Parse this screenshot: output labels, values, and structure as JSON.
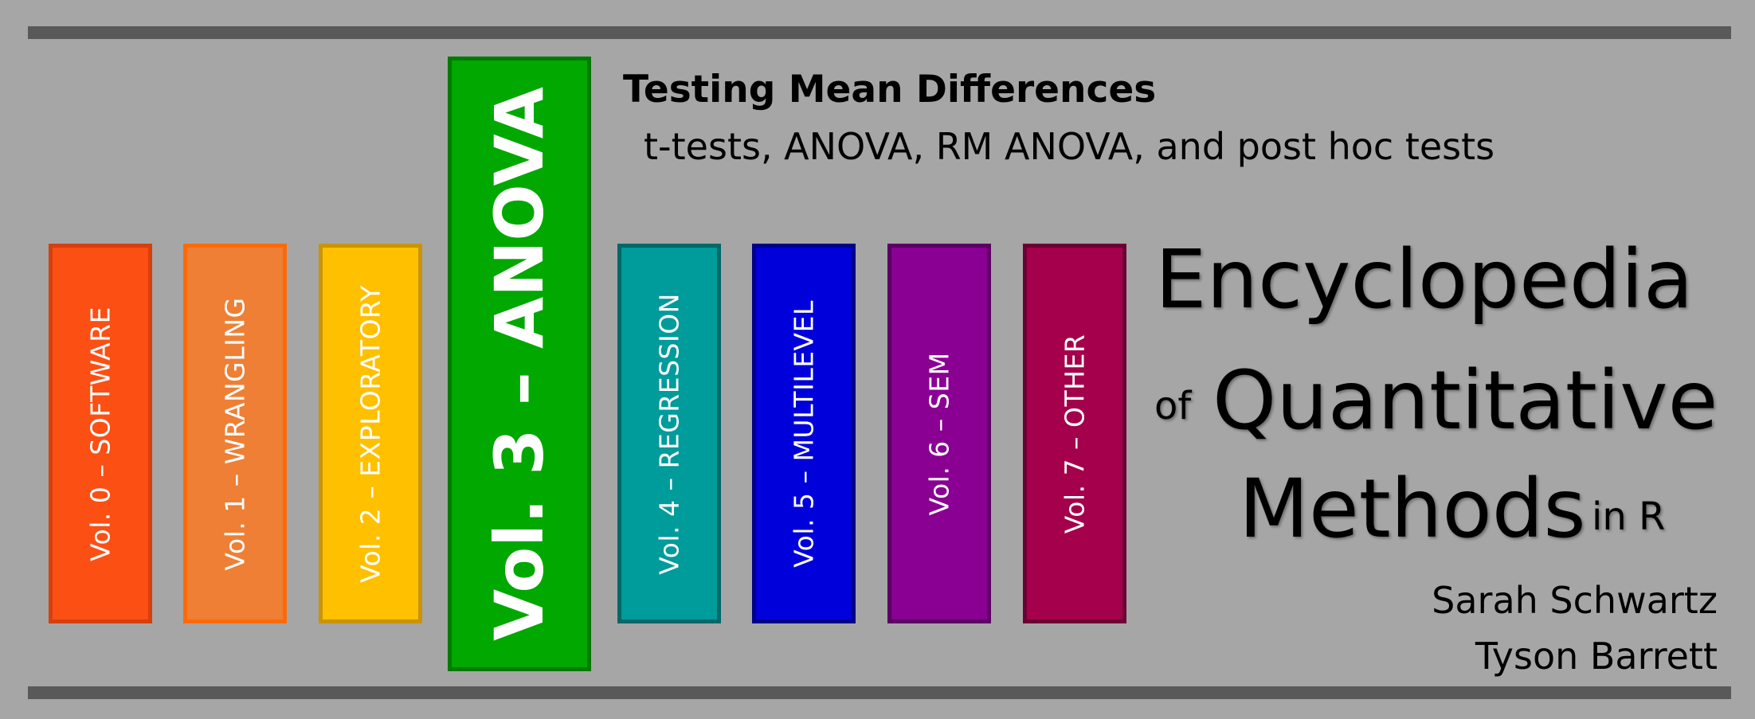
{
  "header": {
    "heading": "Testing Mean Differences",
    "subheading": "t-tests, ANOVA, RM ANOVA, and post hoc tests"
  },
  "books": [
    {
      "label": "Vol. 0 – SOFTWARE",
      "fill": "#fc4f14",
      "border": "#d5400e"
    },
    {
      "label": "Vol. 1 – WRANGLING",
      "fill": "#ee7f35",
      "border": "#fc6a08"
    },
    {
      "label": "Vol. 2 – EXPLORATORY",
      "fill": "#ffc000",
      "border": "#c99406"
    },
    {
      "label": "Vol. 3 – ANOVA",
      "fill": "#00a800",
      "border": "#007a00"
    },
    {
      "label": "Vol. 4 – REGRESSION",
      "fill": "#009b9b",
      "border": "#006868"
    },
    {
      "label": "Vol. 5 – MULTILEVEL",
      "fill": "#0000da",
      "border": "#000089"
    },
    {
      "label": "Vol. 6 – SEM",
      "fill": "#890093",
      "border": "#5c0064"
    },
    {
      "label": "Vol. 7 – OTHER",
      "fill": "#a5004b",
      "border": "#6c0033"
    }
  ],
  "series_title": {
    "line1": "Encyclopedia",
    "of": "of",
    "line2": "Quantitative",
    "line3": "Methods",
    "in_r": "in R"
  },
  "authors": [
    "Sarah Schwartz",
    "Tyson Barrett"
  ]
}
